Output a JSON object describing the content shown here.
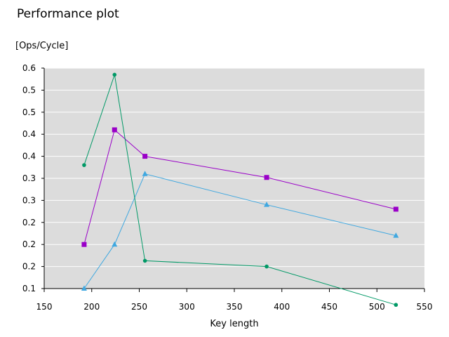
{
  "chart_data": {
    "type": "line",
    "title": "Performance plot",
    "ylabel": "[Ops/Cycle]",
    "xlabel": "Key length",
    "xlim": [
      150,
      550
    ],
    "ylim": [
      0.1,
      0.6
    ],
    "x_ticks": [
      150,
      200,
      250,
      300,
      350,
      400,
      450,
      500,
      550
    ],
    "y_ticks": [
      0.1,
      0.15,
      0.2,
      0.25,
      0.3,
      0.35,
      0.4,
      0.45,
      0.5,
      0.55,
      0.6
    ],
    "y_tick_labels": [
      "0.1",
      "0.2",
      "0.2",
      "0.2",
      "0.3",
      "0.3",
      "0.4",
      "0.4",
      "0.5",
      "0.5",
      "0.6"
    ],
    "grid": true,
    "background": "#dcdcdc",
    "series": [
      {
        "color": "#9a00c8",
        "marker": "square",
        "x": [
          192,
          224,
          256,
          384,
          520
        ],
        "y": [
          0.2,
          0.46,
          0.4,
          0.352,
          0.28
        ]
      },
      {
        "color": "#40a8e0",
        "marker": "triangle",
        "x": [
          192,
          224,
          256,
          384,
          520
        ],
        "y": [
          0.1,
          0.2,
          0.36,
          0.29,
          0.22
        ]
      },
      {
        "color": "#009966",
        "marker": "circle",
        "x": [
          192,
          224,
          256,
          384,
          520
        ],
        "y": [
          0.38,
          0.585,
          0.163,
          0.15,
          0.063
        ]
      }
    ]
  }
}
